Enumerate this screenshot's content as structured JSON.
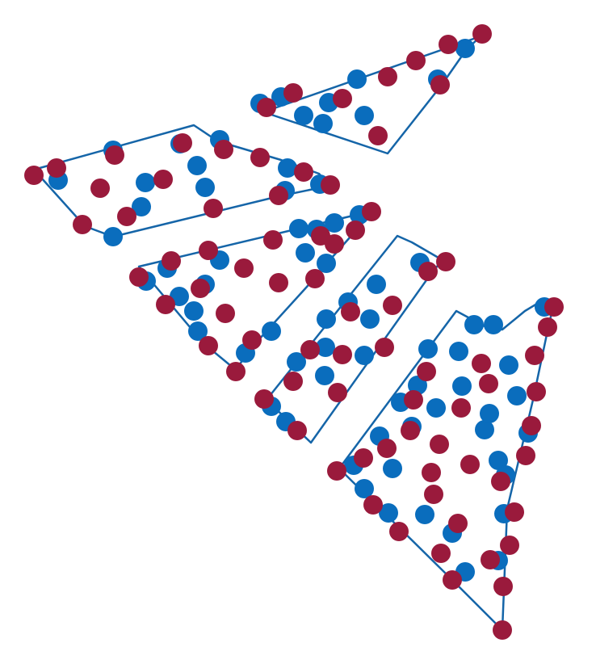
{
  "colors": {
    "boundary": "#1565a8",
    "blue_dot": "#0a6dbd",
    "red_dot": "#9a1a3c"
  }
}
